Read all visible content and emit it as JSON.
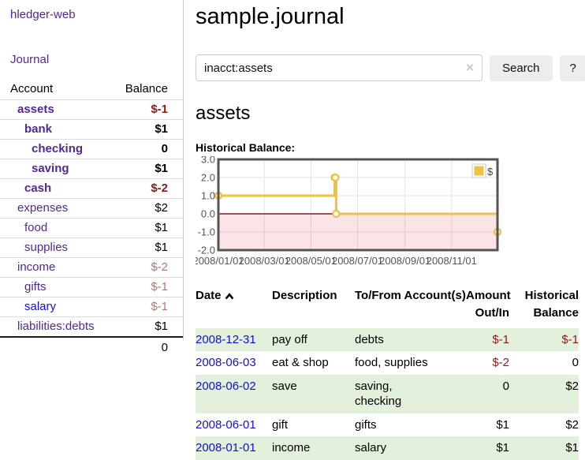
{
  "colors": {
    "link_purple": "#51279b",
    "link_blue": "#0f0fe0",
    "negative_strong": "#941717",
    "negative_soft": "#b97373",
    "row_green": "#e3f0dc",
    "series_yellow": "#EDC240",
    "chart_negative_region": "#f6c3c8",
    "zero_line": "#8b1a1a",
    "chart_border": "#545454",
    "button_gray": "#ededed"
  },
  "sidebar": {
    "app_title": "hledger-web",
    "journal_label": "Journal",
    "accounts_table": {
      "headers": {
        "account": "Account",
        "balance": "Balance"
      },
      "rows": [
        {
          "name": "assets",
          "indent": 1,
          "emph": true,
          "link": "purple",
          "balance": "$-1",
          "tone": "strong-neg"
        },
        {
          "name": "bank",
          "indent": 2,
          "emph": true,
          "link": "purple",
          "balance": "$1",
          "tone": ""
        },
        {
          "name": "checking",
          "indent": 3,
          "emph": true,
          "link": "purple",
          "balance": "0",
          "tone": ""
        },
        {
          "name": "saving",
          "indent": 3,
          "emph": true,
          "link": "purple",
          "balance": "$1",
          "tone": ""
        },
        {
          "name": "cash",
          "indent": 2,
          "emph": true,
          "link": "purple",
          "balance": "$-2",
          "tone": "strong-neg"
        },
        {
          "name": "expenses",
          "indent": 1,
          "emph": false,
          "link": "purple",
          "balance": "$2",
          "tone": ""
        },
        {
          "name": "food",
          "indent": 2,
          "emph": false,
          "link": "purple",
          "balance": "$1",
          "tone": ""
        },
        {
          "name": "supplies",
          "indent": 2,
          "emph": false,
          "link": "purple",
          "balance": "$1",
          "tone": ""
        },
        {
          "name": "income",
          "indent": 1,
          "emph": false,
          "link": "purple",
          "balance": "$-2",
          "tone": "soft-neg"
        },
        {
          "name": "gifts",
          "indent": 2,
          "emph": false,
          "link": "purple",
          "balance": "$-1",
          "tone": "soft-neg"
        },
        {
          "name": "salary",
          "indent": 2,
          "emph": false,
          "link": "blue",
          "balance": "$-1",
          "tone": "soft-neg"
        },
        {
          "name": "liabilities:debts",
          "indent": 1,
          "emph": false,
          "link": "purple",
          "balance": "$1",
          "tone": ""
        }
      ],
      "total": "0"
    }
  },
  "main": {
    "title": "sample.journal",
    "search": {
      "query": "inacct:assets",
      "clear_icon": "×",
      "search_label": "Search",
      "help_label": "?"
    },
    "account_heading": "assets",
    "chart_label": "Historical Balance:",
    "register": {
      "headers": {
        "date": "Date",
        "description": "Description",
        "tofrom": "To/From Account(s)",
        "amount": "Amount Out/In",
        "historical": "Historical Balance"
      },
      "rows": [
        {
          "date": "2008-12-31",
          "description": "pay off",
          "accounts": "debts",
          "amount": "$-1",
          "amount_neg": true,
          "balance": "$-1",
          "balance_neg": true,
          "shaded": true
        },
        {
          "date": "2008-06-03",
          "description": "eat & shop",
          "accounts": "food, supplies",
          "amount": "$-2",
          "amount_neg": true,
          "balance": "0",
          "balance_neg": false,
          "shaded": false
        },
        {
          "date": "2008-06-02",
          "description": "save",
          "accounts": "saving,\nchecking",
          "amount": "0",
          "amount_neg": false,
          "balance": "$2",
          "balance_neg": false,
          "shaded": true
        },
        {
          "date": "2008-06-01",
          "description": "gift",
          "accounts": "gifts",
          "amount": "$1",
          "amount_neg": false,
          "balance": "$2",
          "balance_neg": false,
          "shaded": false
        },
        {
          "date": "2008-01-01",
          "description": "income",
          "accounts": "salary",
          "amount": "$1",
          "amount_neg": false,
          "balance": "$1",
          "balance_neg": false,
          "shaded": true
        }
      ]
    }
  },
  "chart_data": {
    "type": "line",
    "step": true,
    "title": "Historical Balance",
    "legend": "$",
    "legend_position": "top-right",
    "series": [
      {
        "name": "$",
        "color": "#EDC240",
        "points": [
          [
            "2008-01-01",
            1
          ],
          [
            "2008-06-01",
            2
          ],
          [
            "2008-06-02",
            2
          ],
          [
            "2008-06-03",
            0
          ],
          [
            "2008-12-31",
            -1
          ]
        ]
      }
    ],
    "x_start": "2008-01-01",
    "x_days": 365,
    "x_ticks": [
      "2008/01/01",
      "2008/03/01",
      "2008/05/01",
      "2008/07/01",
      "2008/09/01",
      "2008/11/01"
    ],
    "y_ticks": [
      3.0,
      2.0,
      1.0,
      0.0,
      -1.0,
      -2.0
    ],
    "ylim": [
      -2,
      3
    ],
    "grid": true,
    "negative_region": true
  }
}
